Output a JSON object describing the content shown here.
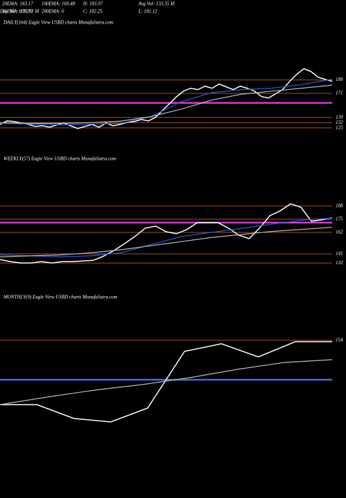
{
  "header": {
    "items": [
      "20EMA: 183.17",
      "100EMA: 169.48",
      "H: 183.97",
      "Avg Vol: 133.35 M",
      "30EMA: 179.77",
      "200EMA: 0",
      "C: 182.25",
      "L: 181.12",
      "Day Vol: 118.281 M"
    ]
  },
  "chart_data": [
    {
      "type": "line",
      "title": "DAILY(164) Eagle  View  USBD charts MunafaSutra.com",
      "ylim": [
        111,
        208
      ],
      "yticks": [
        189,
        171,
        139,
        132,
        125
      ],
      "tick_color": "#a0522d",
      "hlines": [
        {
          "value": 158.4,
          "color": "#d63ad6"
        }
      ],
      "series": [
        {
          "color": "#ffffff",
          "values": [
            129.6,
            134.3,
            133.4,
            131.5,
            129.6,
            126.9,
            127.8,
            125.9,
            128.7,
            131.5,
            127.8,
            124.1,
            126.9,
            129.6,
            125.9,
            131.5,
            127.8,
            129.6,
            132.4,
            133.4,
            136.1,
            134.3,
            138.9,
            148.2,
            157.5,
            166.8,
            174.2,
            177.9,
            176,
            180.7,
            177.9,
            183.5,
            179.8,
            176,
            180.7,
            177.9,
            174.2,
            166.8,
            164.9,
            170.5,
            176,
            187.2,
            196.5,
            203.9,
            200.2,
            192.7,
            189.9,
            187.2
          ]
        },
        {
          "color": "#2a5bd7",
          "values": [
            131,
            130,
            129,
            130,
            131,
            140,
            160,
            172,
            176,
            178,
            183,
            190
          ]
        },
        {
          "color": "#bbbbbb",
          "values": [
            132,
            131,
            131,
            132,
            134,
            140,
            150,
            162,
            170,
            174,
            178,
            182
          ]
        }
      ]
    },
    {
      "type": "line",
      "title": "WEEKLY(57) Eagle  View  USBD charts MunafaSutra.com",
      "ylim": [
        122,
        200
      ],
      "yticks": [
        188,
        175,
        162,
        141,
        132
      ],
      "tick_color": "#a0522d",
      "hlines": [
        {
          "value": 171.6,
          "color": "#d63ad6"
        }
      ],
      "series": [
        {
          "color": "#ffffff",
          "values": [
            135.4,
            133.4,
            132,
            132,
            133.4,
            132,
            133.4,
            133.4,
            134,
            134.7,
            138.8,
            144.3,
            151.1,
            158,
            166.2,
            168.2,
            162.7,
            160.7,
            164.8,
            171.6,
            171.6,
            171.6,
            166.2,
            159.3,
            155.9,
            166.2,
            178.4,
            183.2,
            190.1,
            186.6,
            173,
            174.3,
            176.4
          ]
        },
        {
          "color": "#2a5bd7",
          "values": [
            140,
            139,
            138,
            139,
            142,
            150,
            158,
            162,
            166,
            170,
            174,
            176
          ]
        },
        {
          "color": "#bbbbbb",
          "values": [
            138,
            139,
            140,
            142,
            145,
            149,
            153,
            157,
            160,
            163,
            165,
            167
          ]
        }
      ]
    },
    {
      "type": "line",
      "title": "MONTHLY(9) Eagle  View  USBD charts MunafaSutra.com",
      "ylim": [
        90,
        165
      ],
      "yticks": [
        154
      ],
      "tick_color": "#a0522d",
      "hlines": [
        {
          "value": 125.5,
          "color": "#3a6fe0"
        }
      ],
      "series": [
        {
          "color": "#ffffff",
          "values": [
            107.5,
            107.5,
            97.5,
            95,
            105,
            146,
            151.5,
            142,
            153,
            153
          ]
        },
        {
          "color": "#bbbbbb",
          "values": [
            107.5,
            113,
            118,
            122,
            127,
            133,
            138,
            140
          ]
        }
      ]
    }
  ]
}
